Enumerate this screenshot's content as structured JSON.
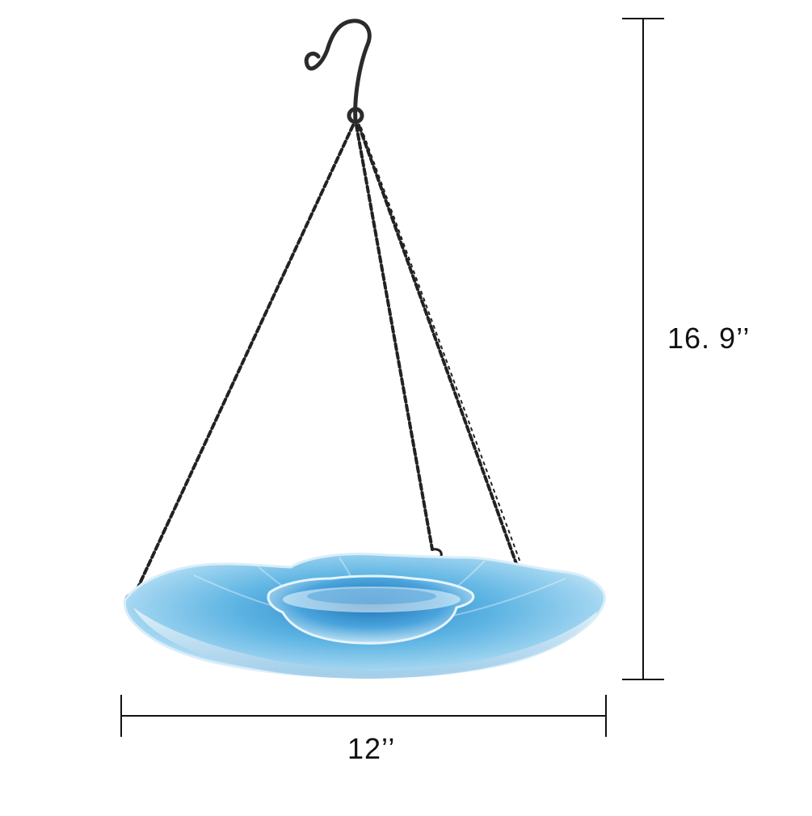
{
  "dimensions": {
    "height_label": "16. 9’’",
    "width_label": "12’’"
  },
  "product": {
    "icon": "hanging-bird-bath-picture"
  },
  "colors": {
    "background": "#ffffff",
    "chain": "#222222",
    "dimension_line": "#111111",
    "glass_light": "#bfe3f5",
    "glass_mid": "#5fb6e4",
    "glass_deep": "#1f7fc4"
  }
}
